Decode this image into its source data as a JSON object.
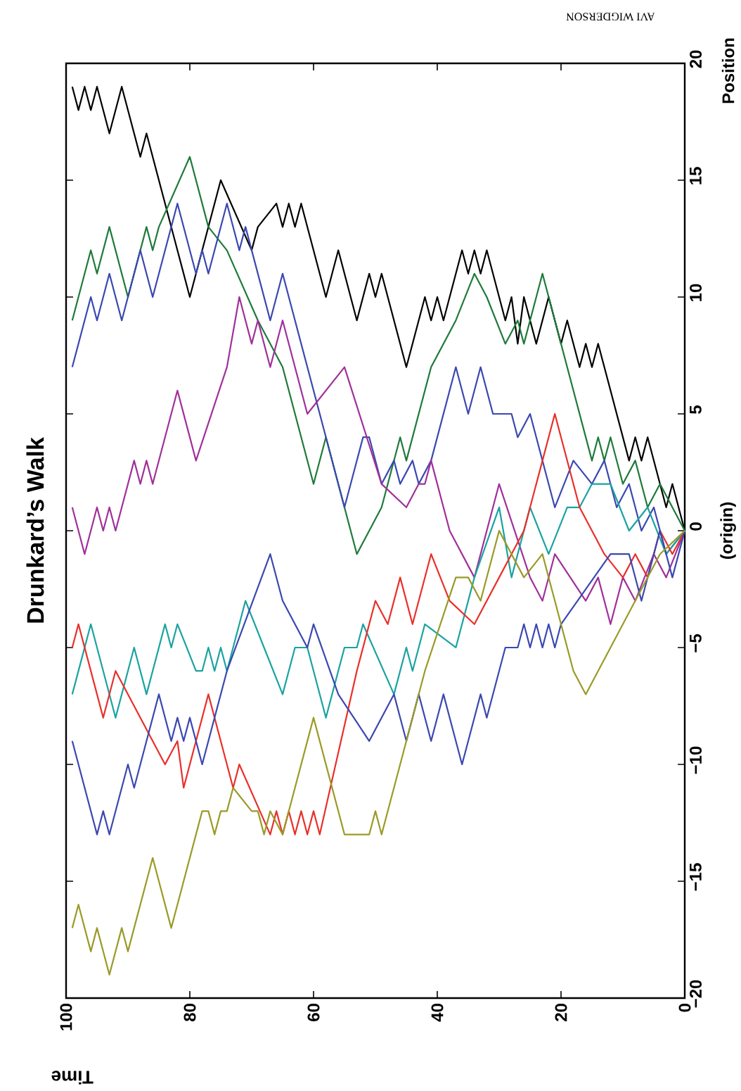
{
  "chart_data": {
    "type": "line",
    "title": "Drunkard’s Walk",
    "xlabel": "Time",
    "ylabel": "Position",
    "annotations": [
      "(origin)",
      "AVI WIGDERSON"
    ],
    "xlim": [
      100,
      0
    ],
    "ylim": [
      -20,
      20
    ],
    "xticks": [
      0,
      20,
      40,
      60,
      80,
      100
    ],
    "yticks": [
      {
        "value": -20,
        "label": "−20"
      },
      {
        "value": -15,
        "label": "−15"
      },
      {
        "value": -10,
        "label": "−10"
      },
      {
        "value": -5,
        "label": "−5"
      },
      0,
      5,
      10,
      15,
      20
    ],
    "grid": false,
    "marker": "none",
    "line_style": "solid",
    "series": [
      {
        "color": "#000000",
        "x": [
          0,
          2,
          3,
          6,
          7,
          8,
          9,
          13,
          14,
          15,
          16,
          17,
          19,
          20,
          22,
          24,
          26,
          27,
          28,
          29,
          32,
          33,
          34,
          35,
          36,
          39,
          40,
          41,
          42,
          45,
          49,
          50,
          51,
          53,
          56,
          58,
          62,
          63,
          64,
          65,
          66,
          69,
          70,
          75,
          80,
          87,
          88,
          91,
          93,
          95,
          96,
          97,
          98,
          99
        ],
        "values": [
          0,
          2,
          1,
          4,
          3,
          4,
          3,
          7,
          8,
          7,
          8,
          7,
          9,
          8,
          10,
          8,
          10,
          8,
          10,
          9,
          12,
          11,
          12,
          11,
          12,
          9,
          10,
          9,
          10,
          7,
          11,
          10,
          11,
          9,
          12,
          10,
          14,
          13,
          14,
          13,
          14,
          13,
          12,
          15,
          10,
          17,
          16,
          19,
          17,
          19,
          18,
          19,
          18,
          19
        ]
      },
      {
        "color": "#1f7a3a",
        "x": [
          0,
          4,
          6,
          8,
          10,
          12,
          13,
          14,
          15,
          19,
          23,
          26,
          27,
          29,
          32,
          34,
          37,
          41,
          45,
          46,
          49,
          51,
          53,
          58,
          60,
          65,
          69,
          74,
          77,
          80,
          85,
          86,
          87,
          90,
          93,
          95,
          96,
          99
        ],
        "values": [
          0,
          2,
          1,
          3,
          2,
          4,
          3,
          4,
          3,
          7,
          11,
          8,
          9,
          8,
          10,
          11,
          9,
          7,
          3,
          4,
          1,
          0,
          -1,
          4,
          2,
          7,
          9,
          12,
          13,
          16,
          13,
          12,
          13,
          10,
          13,
          11,
          12,
          9
        ]
      },
      {
        "color": "#3a48b0",
        "x": [
          0,
          3,
          5,
          7,
          9,
          11,
          13,
          15,
          18,
          21,
          25,
          27,
          28,
          31,
          33,
          35,
          37,
          41,
          43,
          44,
          46,
          47,
          49,
          51,
          52,
          55,
          61,
          65,
          67,
          71,
          72,
          74,
          77,
          78,
          79,
          82,
          86,
          88,
          91,
          93,
          95,
          96,
          99
        ],
        "values": [
          0,
          -1,
          1,
          0,
          2,
          1,
          3,
          2,
          3,
          1,
          5,
          4,
          5,
          5,
          7,
          5,
          7,
          3,
          2,
          3,
          2,
          3,
          2,
          4,
          4,
          1,
          7,
          11,
          9,
          13,
          12,
          14,
          11,
          12,
          11,
          14,
          10,
          12,
          9,
          11,
          9,
          10,
          7
        ]
      },
      {
        "color": "#a0309a",
        "x": [
          0,
          3,
          5,
          8,
          10,
          12,
          14,
          16,
          21,
          23,
          25,
          30,
          34,
          38,
          41,
          42,
          43,
          45,
          49,
          55,
          61,
          65,
          67,
          69,
          70,
          72,
          74,
          79,
          82,
          86,
          87,
          88,
          89,
          92,
          93,
          94,
          95,
          97,
          99
        ],
        "values": [
          0,
          -2,
          -1,
          -3,
          -2,
          -4,
          -2,
          -3,
          -1,
          -3,
          -2,
          2,
          -2,
          0,
          3,
          2,
          2,
          1,
          2,
          7,
          5,
          9,
          7,
          9,
          8,
          10,
          7,
          3,
          6,
          2,
          3,
          2,
          3,
          0,
          1,
          0,
          1,
          -1,
          1
        ]
      },
      {
        "color": "#1aa3a0",
        "x": [
          0,
          3,
          6,
          9,
          12,
          15,
          17,
          19,
          22,
          25,
          28,
          30,
          34,
          37,
          42,
          44,
          45,
          47,
          52,
          53,
          55,
          58,
          61,
          63,
          65,
          68,
          71,
          74,
          75,
          76,
          77,
          78,
          79,
          82,
          83,
          84,
          87,
          89,
          92,
          96,
          99
        ],
        "values": [
          0,
          -1,
          1,
          0,
          2,
          2,
          1,
          1,
          -1,
          1,
          -2,
          1,
          -2,
          -5,
          -4,
          -6,
          -5,
          -7,
          -4,
          -5,
          -5,
          -8,
          -5,
          -5,
          -7,
          -5,
          -3,
          -6,
          -5,
          -6,
          -5,
          -6,
          -6,
          -4,
          -5,
          -4,
          -7,
          -5,
          -8,
          -4,
          -7
        ]
      },
      {
        "color": "#e8302a",
        "x": [
          0,
          2,
          4,
          6,
          8,
          10,
          13,
          15,
          17,
          21,
          26,
          28,
          30,
          34,
          38,
          41,
          44,
          46,
          48,
          50,
          53,
          59,
          60,
          61,
          62,
          63,
          64,
          65,
          66,
          67,
          72,
          73,
          77,
          81,
          82,
          84,
          92,
          94,
          95,
          98,
          99
        ],
        "values": [
          0,
          -1,
          0,
          -2,
          -1,
          -2,
          -1,
          0,
          1,
          5,
          0,
          -1,
          -2,
          -4,
          -3,
          -1,
          -4,
          -2,
          -4,
          -3,
          -6,
          -13,
          -12,
          -13,
          -12,
          -13,
          -12,
          -13,
          -12,
          -13,
          -10,
          -11,
          -7,
          -11,
          -9,
          -10,
          -6,
          -8,
          -7,
          -4,
          -5
        ]
      },
      {
        "color": "#3a48b0",
        "x": [
          0,
          2,
          4,
          7,
          9,
          12,
          20,
          21,
          22,
          23,
          24,
          25,
          26,
          27,
          29,
          30,
          32,
          33,
          36,
          39,
          41,
          43,
          45,
          47,
          51,
          56,
          60,
          61,
          65,
          67,
          74,
          78,
          80,
          81,
          82,
          83,
          85,
          89,
          90,
          93,
          94,
          95,
          99
        ],
        "values": [
          0,
          -2,
          0,
          -3,
          -1,
          -1,
          -4,
          -5,
          -4,
          -5,
          -4,
          -5,
          -4,
          -5,
          -5,
          -6,
          -8,
          -7,
          -10,
          -7,
          -9,
          -7,
          -9,
          -7,
          -9,
          -7,
          -4,
          -5,
          -3,
          -1,
          -6,
          -10,
          -8,
          -9,
          -8,
          -9,
          -7,
          -11,
          -10,
          -13,
          -12,
          -13,
          -9
        ]
      },
      {
        "color": "#9a9a28",
        "x": [
          0,
          4,
          8,
          10,
          12,
          14,
          16,
          18,
          20,
          23,
          26,
          28,
          30,
          33,
          35,
          37,
          42,
          49,
          50,
          51,
          55,
          60,
          65,
          67,
          68,
          69,
          70,
          73,
          74,
          75,
          76,
          77,
          78,
          83,
          86,
          90,
          91,
          93,
          95,
          96,
          98,
          99
        ],
        "values": [
          0,
          -1,
          -3,
          -4,
          -5,
          -6,
          -7,
          -6,
          -4,
          -1,
          -2,
          -1,
          0,
          -3,
          -2,
          -2,
          -6,
          -13,
          -12,
          -13,
          -13,
          -8,
          -13,
          -12,
          -13,
          -12,
          -12,
          -11,
          -12,
          -12,
          -13,
          -12,
          -12,
          -17,
          -14,
          -18,
          -17,
          -19,
          -17,
          -18,
          -16,
          -17
        ]
      }
    ]
  }
}
